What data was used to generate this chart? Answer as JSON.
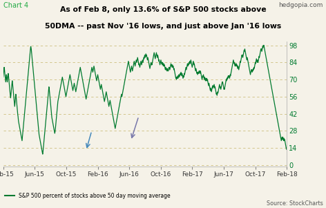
{
  "title_line1": "As of Feb 8, only 13.6% of S&P 500 stocks above",
  "title_line2": "50DMA -- past Nov '16 lows, and just above Jan '16 lows",
  "chart_label": "Chart 4",
  "source_label": "Source: StockCharts",
  "website": "hedgopia.com",
  "legend_label": "S&P 500 percent of stocks above 50 day moving average",
  "yticks": [
    0,
    14,
    28,
    42,
    56,
    70,
    84,
    98
  ],
  "ylim": [
    -1,
    101
  ],
  "bg_color": "#f5f2e8",
  "line_color": "#007a2f",
  "dashed_color": "#c8b870",
  "title_color": "#000000",
  "xtick_labels": [
    "Feb-15",
    "Jun-15",
    "Oct-15",
    "Feb-16",
    "Jun-16",
    "Oct-16",
    "Feb-17",
    "Jun-17",
    "Oct-17",
    "Feb-18"
  ],
  "ytick_color": "#007a2f",
  "arrow1_color": "#7777aa",
  "arrow2_color": "#4488bb",
  "y_values": [
    72,
    74,
    76,
    78,
    80,
    79,
    77,
    75,
    73,
    72,
    70,
    68,
    70,
    72,
    74,
    73,
    71,
    69,
    68,
    70,
    72,
    74,
    75,
    74,
    72,
    70,
    68,
    66,
    64,
    62,
    60,
    58,
    56,
    55,
    57,
    59,
    61,
    63,
    65,
    67,
    69,
    68,
    66,
    64,
    62,
    60,
    58,
    56,
    54,
    52,
    50,
    48,
    50,
    52,
    54,
    56,
    58,
    57,
    55,
    53,
    51,
    49,
    47,
    45,
    43,
    41,
    40,
    38,
    36,
    35,
    34,
    33,
    32,
    31,
    30,
    29,
    28,
    27,
    26,
    25,
    24,
    23,
    22,
    21,
    20,
    22,
    24,
    26,
    28,
    30,
    32,
    34,
    36,
    38,
    40,
    42,
    44,
    46,
    48,
    50,
    52,
    54,
    56,
    58,
    60,
    62,
    64,
    66,
    68,
    70,
    72,
    74,
    76,
    78,
    80,
    82,
    84,
    86,
    88,
    90,
    92,
    94,
    96,
    97,
    96,
    95,
    93,
    91,
    89,
    87,
    85,
    83,
    81,
    79,
    77,
    75,
    73,
    71,
    69,
    67,
    65,
    63,
    61,
    59,
    57,
    55,
    53,
    51,
    49,
    47,
    45,
    43,
    41,
    39,
    37,
    35,
    33,
    31,
    29,
    27,
    25,
    24,
    23,
    22,
    21,
    20,
    19,
    18,
    17,
    16,
    15,
    14,
    13,
    12,
    11,
    10,
    9,
    10,
    12,
    14,
    16,
    18,
    20,
    22,
    24,
    26,
    28,
    30,
    32,
    34,
    36,
    38,
    40,
    42,
    44,
    46,
    48,
    50,
    52,
    54,
    56,
    58,
    60,
    62,
    64,
    63,
    61,
    59,
    57,
    55,
    53,
    51,
    49,
    47,
    45,
    43,
    41,
    39,
    38,
    37,
    36,
    35,
    34,
    33,
    32,
    31,
    30,
    29,
    28,
    27,
    26,
    27,
    28,
    30,
    32,
    34,
    36,
    38,
    40,
    42,
    44,
    46,
    48,
    50,
    52,
    53,
    54,
    55,
    56,
    57,
    58,
    59,
    60,
    61,
    62,
    63,
    64,
    65,
    66,
    67,
    68,
    69,
    70,
    71,
    72,
    71,
    70,
    69,
    68,
    67,
    66,
    65,
    64,
    63,
    62,
    61,
    60,
    59,
    58,
    57,
    56,
    57,
    58,
    59,
    60,
    61,
    62,
    63,
    64,
    65,
    66,
    67,
    68,
    69,
    70,
    71,
    72,
    73,
    74,
    73,
    72,
    71,
    70,
    69,
    68,
    67,
    66,
    65,
    64,
    63,
    62,
    61,
    62,
    63,
    64,
    65,
    66,
    67,
    66,
    65,
    64,
    63,
    62,
    61,
    60,
    61,
    62,
    63,
    64,
    65,
    66,
    67,
    68,
    69,
    70,
    71,
    72,
    73,
    74,
    75,
    76,
    77,
    78,
    79,
    80,
    79,
    78,
    77,
    76,
    75,
    74,
    73,
    72,
    71,
    70,
    69,
    68,
    67,
    66,
    65,
    64,
    63,
    62,
    61,
    60,
    59,
    58,
    57,
    56,
    55,
    54,
    55,
    56,
    57,
    58,
    59,
    60,
    61,
    62,
    63,
    64,
    65,
    66,
    67,
    68,
    69,
    70,
    71,
    72,
    73,
    74,
    75,
    76,
    77,
    78,
    79,
    80,
    79,
    78,
    77,
    76,
    77,
    78,
    79,
    80,
    81,
    80,
    79,
    78,
    77,
    76,
    75,
    74,
    73,
    72,
    71,
    70,
    69,
    70,
    71,
    72,
    73,
    74,
    73,
    72,
    71,
    70,
    69,
    68,
    67,
    66,
    65,
    64,
    63,
    62,
    63,
    64,
    65,
    66,
    65,
    64,
    63,
    62,
    61,
    60,
    59,
    58,
    57,
    56,
    55,
    54,
    53,
    52,
    53,
    54,
    55,
    56,
    57,
    58,
    59,
    60,
    59,
    58,
    57,
    56,
    55,
    54,
    53,
    52,
    51,
    50,
    49,
    48,
    49,
    50,
    51,
    52,
    53,
    52,
    51,
    50,
    49,
    48,
    47,
    46,
    45,
    44,
    43,
    42,
    41,
    40,
    39,
    38,
    37,
    36,
    35,
    34,
    33,
    32,
    31,
    30,
    31,
    32,
    33,
    34,
    35,
    36,
    37,
    38,
    39,
    40,
    41,
    42,
    43,
    44,
    45,
    46,
    47,
    48,
    49,
    50,
    51,
    52,
    53,
    54,
    55,
    56,
    57,
    58,
    57,
    56,
    57,
    58,
    59,
    60,
    61,
    62,
    63,
    64,
    65,
    66,
    67,
    68,
    69,
    70,
    71,
    72,
    73,
    74,
    75,
    76,
    77,
    78,
    79,
    80,
    81,
    82,
    83,
    84,
    85,
    84,
    83,
    82,
    81,
    80,
    79,
    78,
    77,
    76,
    77,
    78,
    79,
    80,
    81,
    80,
    79,
    78,
    77,
    78,
    79,
    80,
    81,
    82,
    83,
    84,
    85,
    84,
    83,
    82,
    81,
    82,
    83,
    84,
    85,
    86,
    85,
    84,
    85,
    86,
    87,
    88,
    87,
    86,
    85,
    84,
    83,
    82,
    83,
    82,
    81,
    80,
    81,
    82,
    83,
    84,
    85,
    84,
    83,
    82,
    83,
    84,
    85,
    86,
    85,
    84,
    85,
    86,
    87,
    88,
    87,
    88,
    89,
    90,
    89,
    88,
    89,
    90,
    91,
    90,
    89,
    90,
    89,
    88,
    87,
    86,
    87,
    88,
    87,
    86,
    85,
    84,
    83,
    82,
    81,
    80,
    79,
    80,
    81,
    82,
    83,
    84,
    83,
    82,
    83,
    82,
    83,
    84,
    85,
    86,
    87,
    88,
    89,
    90,
    91,
    92,
    91,
    90,
    89,
    88,
    87,
    88,
    89,
    90,
    91,
    92,
    91,
    90,
    89,
    88,
    89,
    90,
    89,
    88,
    87,
    86,
    85,
    86,
    85,
    84,
    83,
    82,
    83,
    84,
    85,
    86,
    85,
    84,
    83,
    84,
    83,
    82,
    83,
    84,
    83,
    82,
    81,
    82,
    83,
    82,
    81,
    82,
    81,
    80,
    79,
    78,
    79,
    80,
    79,
    78,
    79,
    78,
    77,
    78,
    79,
    78,
    77,
    78,
    77,
    78,
    79,
    80,
    79,
    80,
    79,
    78,
    79,
    80,
    81,
    82,
    83,
    82,
    81,
    82,
    81,
    80,
    81,
    82,
    81,
    80,
    81,
    80,
    79,
    78,
    79,
    78,
    77,
    76,
    75,
    74,
    73,
    72,
    71,
    72,
    71,
    70,
    71,
    72,
    71,
    72,
    73,
    72,
    71,
    72,
    73,
    74,
    73,
    72,
    73,
    74,
    73,
    74,
    75,
    74,
    75,
    76,
    75,
    74,
    73,
    74,
    75,
    74,
    73,
    72,
    71,
    72,
    73,
    72,
    73,
    74,
    75,
    74,
    75,
    76,
    77,
    78,
    79,
    80,
    79,
    78,
    79,
    80,
    81,
    82,
    83,
    82,
    81,
    82,
    83,
    82,
    83,
    84,
    83,
    84,
    85,
    84,
    83,
    84,
    85,
    86,
    85,
    84,
    83,
    82,
    81,
    80,
    81,
    82,
    83,
    84,
    85,
    84,
    83,
    82,
    83,
    82,
    81,
    80,
    79,
    78,
    77,
    78,
    79,
    78,
    77,
    76,
    75,
    76,
    75,
    74,
    75,
    76,
    75,
    76,
    75,
    76,
    77,
    76,
    77,
    76,
    75,
    76,
    77,
    76,
    75,
    74,
    73,
    72,
    71,
    70,
    71,
    72,
    73,
    72,
    73,
    74,
    73,
    72,
    71,
    70,
    71,
    72,
    71,
    70,
    69,
    70,
    71,
    70,
    69,
    70,
    71,
    70,
    69,
    70,
    69,
    68,
    67,
    66,
    65,
    66,
    67,
    66,
    65,
    64,
    63,
    62,
    61,
    62,
    63,
    62,
    61,
    60,
    61,
    62,
    63,
    64,
    65,
    64,
    63,
    64,
    65,
    64,
    65,
    66,
    65,
    64,
    63,
    64,
    63,
    62,
    61,
    60,
    59,
    58,
    59,
    58,
    57,
    58,
    59,
    60,
    59,
    60,
    61,
    62,
    63,
    64,
    65,
    66,
    65,
    64,
    63,
    64,
    63,
    62,
    63,
    64,
    65,
    66,
    67,
    68,
    67,
    68,
    67,
    66,
    65,
    64,
    63,
    62,
    63,
    62,
    63,
    64,
    65,
    66,
    67,
    68,
    69,
    70,
    69,
    70,
    71,
    70,
    71,
    72,
    71,
    72,
    73,
    72,
    73,
    72,
    73,
    72,
    71,
    72,
    73,
    74,
    73,
    74,
    75,
    76,
    77,
    78,
    79,
    80,
    81,
    82,
    83,
    84,
    85,
    86,
    85,
    84,
    83,
    84,
    83,
    82,
    81,
    82,
    83,
    82,
    81,
    82,
    83,
    82,
    81,
    82,
    81,
    80,
    79,
    80,
    81,
    80,
    79,
    78,
    79,
    80,
    81,
    82,
    83,
    84,
    85,
    84,
    85,
    86,
    87,
    88,
    89,
    90,
    89,
    90,
    89,
    88,
    89,
    90,
    91,
    92,
    93,
    94,
    93,
    94,
    95,
    94,
    93,
    92,
    91,
    90,
    89,
    88,
    87,
    86,
    87,
    88,
    87,
    86,
    85,
    84,
    83,
    82,
    81,
    80,
    79,
    78,
    77,
    76,
    75,
    74,
    75,
    76,
    77,
    78,
    77,
    78,
    77,
    76,
    77,
    78,
    77,
    78,
    79,
    78,
    79,
    80,
    79,
    80,
    81,
    82,
    83,
    84,
    83,
    84,
    85,
    86,
    87,
    86,
    85,
    84,
    85,
    86,
    85,
    84,
    85,
    86,
    87,
    88,
    89,
    88,
    89,
    90,
    91,
    92,
    93,
    94,
    95,
    94,
    95,
    94,
    93,
    94,
    95,
    96,
    97,
    96,
    97,
    98,
    97,
    98,
    97,
    96,
    95,
    94,
    93,
    92,
    91,
    90,
    89,
    88,
    87,
    86,
    85,
    84,
    83,
    82,
    81,
    80,
    79,
    78,
    77,
    76,
    75,
    74,
    73,
    72,
    71,
    70,
    69,
    68,
    67,
    66,
    65,
    64,
    63,
    62,
    61,
    60,
    59,
    58,
    57,
    56,
    55,
    54,
    53,
    52,
    51,
    50,
    49,
    48,
    47,
    46,
    45,
    44,
    43,
    42,
    41,
    40,
    39,
    38,
    37,
    36,
    35,
    34,
    33,
    32,
    31,
    30,
    29,
    28,
    27,
    26,
    25,
    24,
    23,
    22,
    21,
    20,
    21,
    22,
    23,
    22,
    21,
    22,
    23,
    22,
    21,
    20,
    21,
    22,
    21,
    20,
    21,
    20,
    19,
    18,
    17,
    16,
    15,
    14,
    13,
    14,
    13
  ]
}
